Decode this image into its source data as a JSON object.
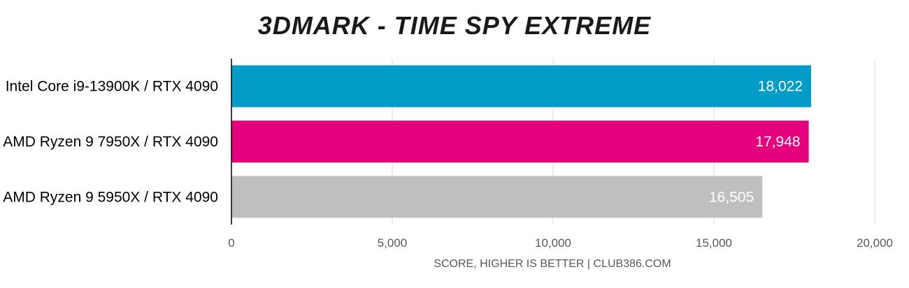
{
  "chart_data": {
    "type": "bar",
    "orientation": "horizontal",
    "title": "3DMARK - TIME SPY EXTREME",
    "categories": [
      "Intel Core i9-13900K / RTX 4090",
      "AMD Ryzen 9 7950X / RTX 4090",
      "AMD Ryzen 9 5950X / RTX 4090"
    ],
    "values": [
      18022,
      17948,
      16505
    ],
    "value_labels": [
      "18,022",
      "17,948",
      "16,505"
    ],
    "colors": [
      "#039bc8",
      "#e5007e",
      "#bfbfbf"
    ],
    "xlim": [
      0,
      20000
    ],
    "ticks": [
      0,
      5000,
      10000,
      15000,
      20000
    ],
    "tick_labels": [
      "0",
      "5,000",
      "10,000",
      "15,000",
      "20,000"
    ],
    "xlabel": "SCORE, HIGHER IS BETTER | CLUB386.COM",
    "ylabel": "",
    "grid": true,
    "legend": "none"
  }
}
